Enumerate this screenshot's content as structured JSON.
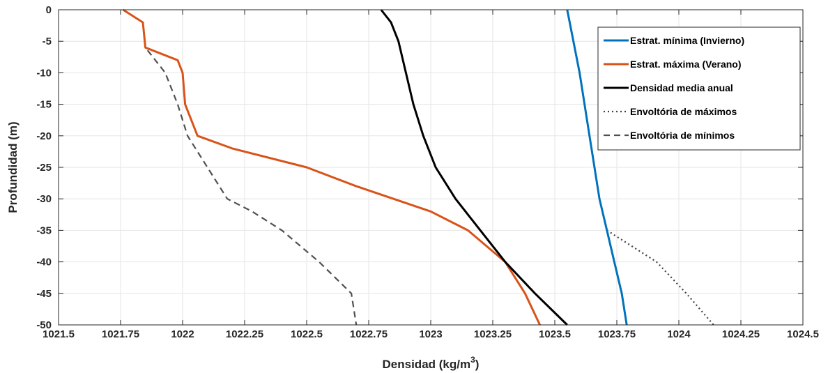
{
  "chart_data": {
    "type": "line",
    "xlabel": "Densidad (kg/m",
    "xlabel_sup": "3",
    "xlabel_close": ")",
    "ylabel": "Profundidad (m)",
    "xlim": [
      1021.5,
      1024.5
    ],
    "ylim": [
      -50,
      0
    ],
    "xticks": [
      1021.5,
      1021.75,
      1022,
      1022.25,
      1022.5,
      1022.75,
      1023,
      1023.25,
      1023.5,
      1023.75,
      1024,
      1024.25,
      1024.5
    ],
    "xtick_labels": [
      "1021.5",
      "1021.75",
      "1022",
      "1022.25",
      "1022.5",
      "1022.75",
      "1023",
      "1023.25",
      "1023.5",
      "1023.75",
      "1024",
      "1024.25",
      "1024.5"
    ],
    "yticks": [
      0,
      -5,
      -10,
      -15,
      -20,
      -25,
      -30,
      -35,
      -40,
      -45,
      -50
    ],
    "ytick_labels": [
      "0",
      "-5",
      "-10",
      "-15",
      "-20",
      "-25",
      "-30",
      "-35",
      "-40",
      "-45",
      "-50"
    ],
    "grid": true,
    "legend_position": "top-right",
    "series": [
      {
        "name": "Estrat. mínima (Invierno)",
        "color": "#0072BD",
        "style": "solid",
        "points": [
          [
            1023.55,
            0
          ],
          [
            1023.56,
            -2
          ],
          [
            1023.6,
            -10
          ],
          [
            1023.64,
            -20
          ],
          [
            1023.68,
            -30
          ],
          [
            1023.71,
            -35
          ],
          [
            1023.74,
            -40
          ],
          [
            1023.77,
            -45
          ],
          [
            1023.79,
            -50
          ]
        ]
      },
      {
        "name": "Estrat. máxima (Verano)",
        "color": "#D95319",
        "style": "solid",
        "points": [
          [
            1021.76,
            0
          ],
          [
            1021.84,
            -2
          ],
          [
            1021.85,
            -6
          ],
          [
            1021.98,
            -8
          ],
          [
            1022.0,
            -10
          ],
          [
            1022.01,
            -15
          ],
          [
            1022.06,
            -20
          ],
          [
            1022.2,
            -22
          ],
          [
            1022.5,
            -25
          ],
          [
            1022.7,
            -28
          ],
          [
            1022.85,
            -30
          ],
          [
            1023.0,
            -32
          ],
          [
            1023.15,
            -35
          ],
          [
            1023.3,
            -40
          ],
          [
            1023.38,
            -45
          ],
          [
            1023.44,
            -50
          ]
        ]
      },
      {
        "name": "Densidad media anual",
        "color": "#000000",
        "style": "solid",
        "points": [
          [
            1022.8,
            0
          ],
          [
            1022.84,
            -2
          ],
          [
            1022.87,
            -5
          ],
          [
            1022.9,
            -10
          ],
          [
            1022.93,
            -15
          ],
          [
            1022.97,
            -20
          ],
          [
            1023.02,
            -25
          ],
          [
            1023.1,
            -30
          ],
          [
            1023.2,
            -35
          ],
          [
            1023.3,
            -40
          ],
          [
            1023.42,
            -45
          ],
          [
            1023.55,
            -50
          ]
        ]
      },
      {
        "name": "Envoltória de máximos",
        "color": "#404040",
        "style": "dotted",
        "points": [
          [
            1023.71,
            -35
          ],
          [
            1023.91,
            -40
          ],
          [
            1024.03,
            -45
          ],
          [
            1024.14,
            -50
          ]
        ]
      },
      {
        "name": "Envoltória de mínimos",
        "color": "#505050",
        "style": "dashed",
        "points": [
          [
            1021.76,
            0
          ],
          [
            1021.84,
            -2
          ],
          [
            1021.85,
            -6
          ],
          [
            1021.93,
            -10
          ],
          [
            1021.98,
            -15
          ],
          [
            1022.02,
            -20
          ],
          [
            1022.1,
            -25
          ],
          [
            1022.18,
            -30
          ],
          [
            1022.28,
            -32
          ],
          [
            1022.4,
            -35
          ],
          [
            1022.55,
            -40
          ],
          [
            1022.68,
            -45
          ],
          [
            1022.7,
            -50
          ]
        ]
      }
    ]
  }
}
